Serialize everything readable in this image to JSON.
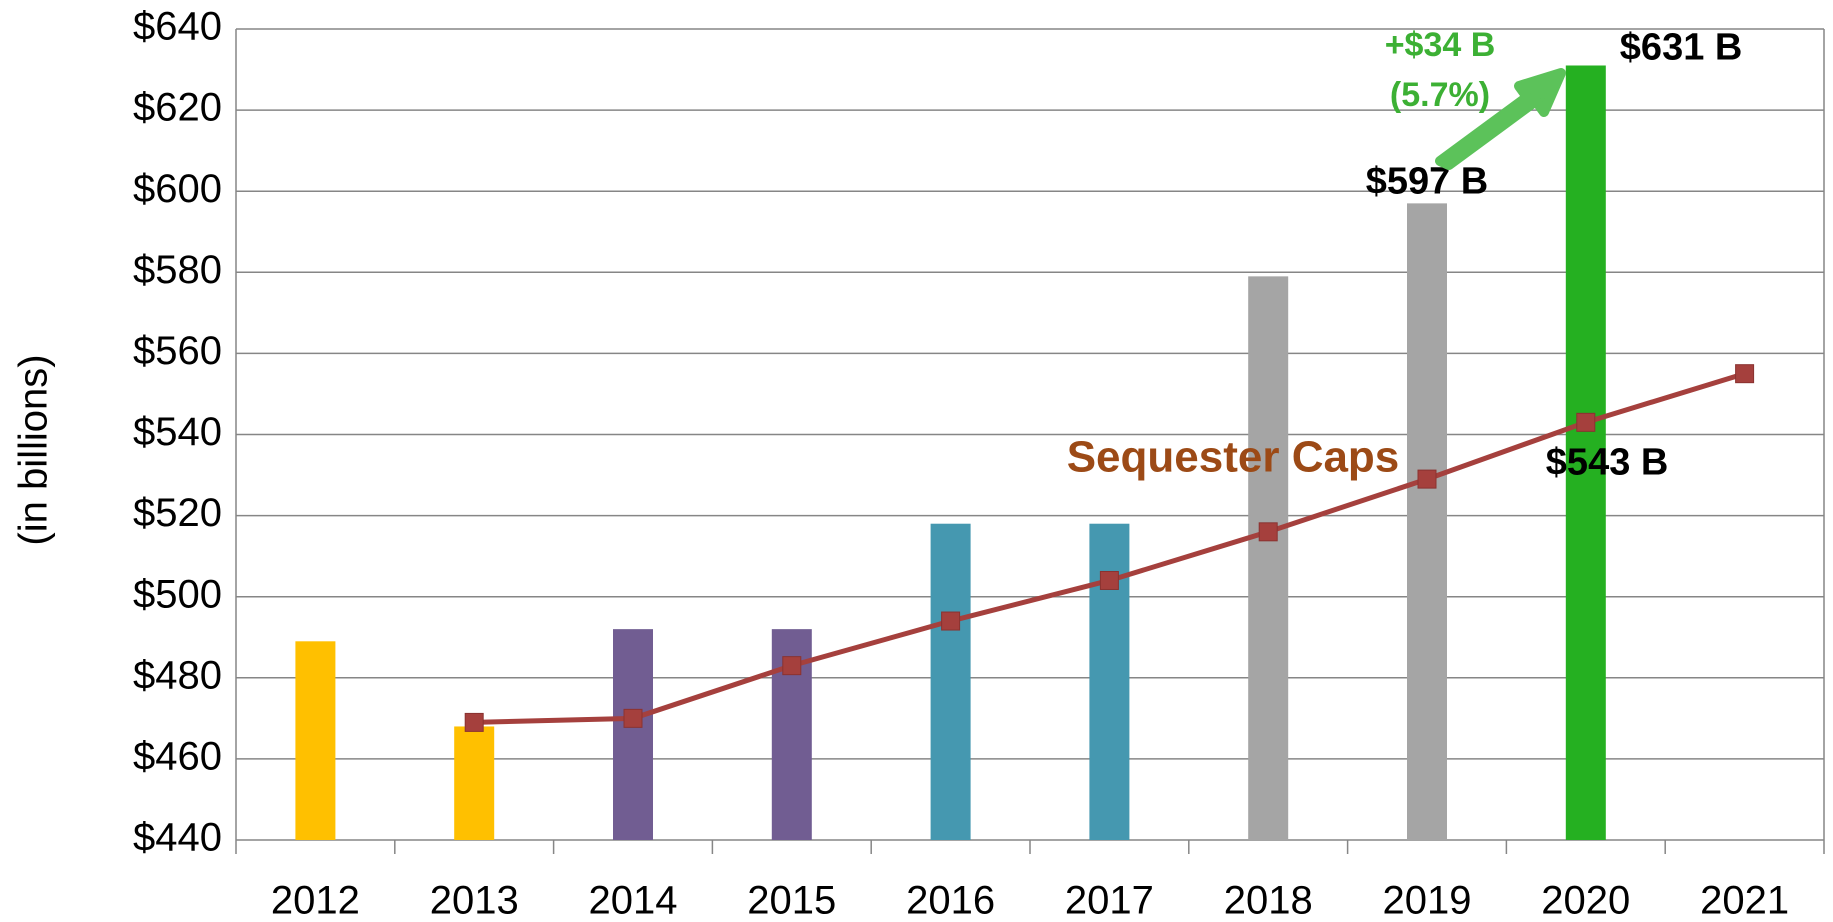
{
  "chart_data": {
    "type": "bar",
    "y_label": "(in billions)",
    "categories": [
      "2012",
      "2013",
      "2014",
      "2015",
      "2016",
      "2017",
      "2018",
      "2019",
      "2020",
      "2021"
    ],
    "series": [
      {
        "type": "bar",
        "values": [
          489,
          468,
          492,
          492,
          518,
          518,
          579,
          597,
          631,
          null
        ],
        "colors": [
          "#ffc000",
          "#ffc000",
          "#715d92",
          "#715d92",
          "#4598b0",
          "#4598b0",
          "#a5a5a5",
          "#a5a5a5",
          "#25b021",
          null
        ],
        "value_labels": [
          null,
          null,
          null,
          null,
          null,
          null,
          null,
          "$597 B",
          "$631 B",
          null
        ]
      },
      {
        "type": "line",
        "name": "Sequester Caps",
        "color": "#a5403d",
        "values": [
          null,
          469,
          470,
          483,
          494,
          504,
          516,
          529,
          543,
          555
        ],
        "value_labels": [
          null,
          null,
          null,
          null,
          null,
          null,
          null,
          null,
          "$543 B",
          null
        ]
      }
    ],
    "annotations": [
      "+$34 B",
      "(5.7%)"
    ],
    "annotation_color": "#3cb034",
    "ylim": [
      440,
      640
    ],
    "yticks": [
      {
        "value": 440,
        "label": "$440"
      },
      {
        "value": 460,
        "label": "$460"
      },
      {
        "value": 480,
        "label": "$480"
      },
      {
        "value": 500,
        "label": "$500"
      },
      {
        "value": 520,
        "label": "$520"
      },
      {
        "value": 540,
        "label": "$540"
      },
      {
        "value": 560,
        "label": "$560"
      },
      {
        "value": 580,
        "label": "$580"
      },
      {
        "value": 600,
        "label": "$600"
      },
      {
        "value": 620,
        "label": "$620"
      },
      {
        "value": 640,
        "label": "$640"
      }
    ],
    "grid": true
  }
}
